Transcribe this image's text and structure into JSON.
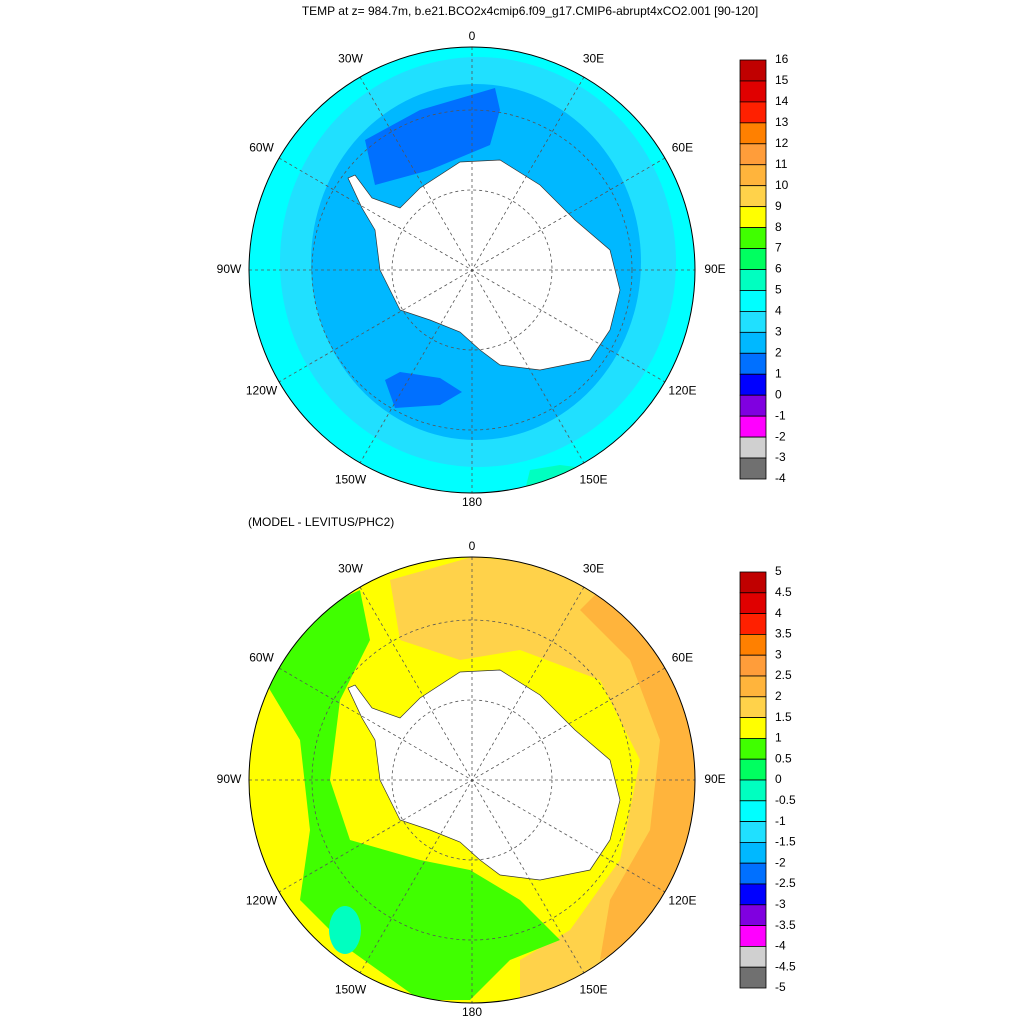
{
  "title": "TEMP at z= 984.7m, b.e21.BCO2x4cmip6.f09_g17.CMIP6-abrupt4xCO2.001 [90-120]",
  "maps": [
    {
      "lon_labels": [
        "0",
        "30E",
        "60E",
        "90E",
        "120E",
        "150E",
        "180",
        "150W",
        "120W",
        "90W",
        "60W",
        "30W"
      ],
      "colorbar": {
        "labels": [
          16,
          15,
          14,
          13,
          12,
          11,
          10,
          9,
          8,
          7,
          6,
          5,
          4,
          3,
          2,
          1,
          0,
          -1,
          -2,
          -3,
          -4
        ],
        "colors": [
          "#c00000",
          "#e00000",
          "#ff2000",
          "#ff8000",
          "#ff9d3a",
          "#ffb43c",
          "#ffd24a",
          "#ffff00",
          "#40ff00",
          "#00ff60",
          "#00ffc0",
          "#00ffff",
          "#20e0ff",
          "#00b8ff",
          "#0070ff",
          "#0000ff",
          "#8000e0",
          "#ff00ff",
          "#d0d0d0",
          "#707070"
        ]
      }
    },
    {
      "subtitle": "(MODEL - LEVITUS/PHC2)",
      "lon_labels": [
        "0",
        "30E",
        "60E",
        "90E",
        "120E",
        "150E",
        "180",
        "150W",
        "120W",
        "90W",
        "60W",
        "30W"
      ],
      "colorbar": {
        "labels": [
          5,
          4.5,
          4,
          3.5,
          3,
          2.5,
          2,
          1.5,
          1,
          0.5,
          0,
          -0.5,
          -1,
          -1.5,
          -2,
          -2.5,
          -3,
          -3.5,
          -4,
          -4.5,
          -5
        ],
        "colors": [
          "#c00000",
          "#e00000",
          "#ff2000",
          "#ff8000",
          "#ff9d3a",
          "#ffb43c",
          "#ffd24a",
          "#ffff00",
          "#40ff00",
          "#00ff60",
          "#00ffc0",
          "#00ffff",
          "#20e0ff",
          "#00b8ff",
          "#0070ff",
          "#0000ff",
          "#8000e0",
          "#ff00ff",
          "#d0d0d0",
          "#707070"
        ]
      }
    }
  ]
}
